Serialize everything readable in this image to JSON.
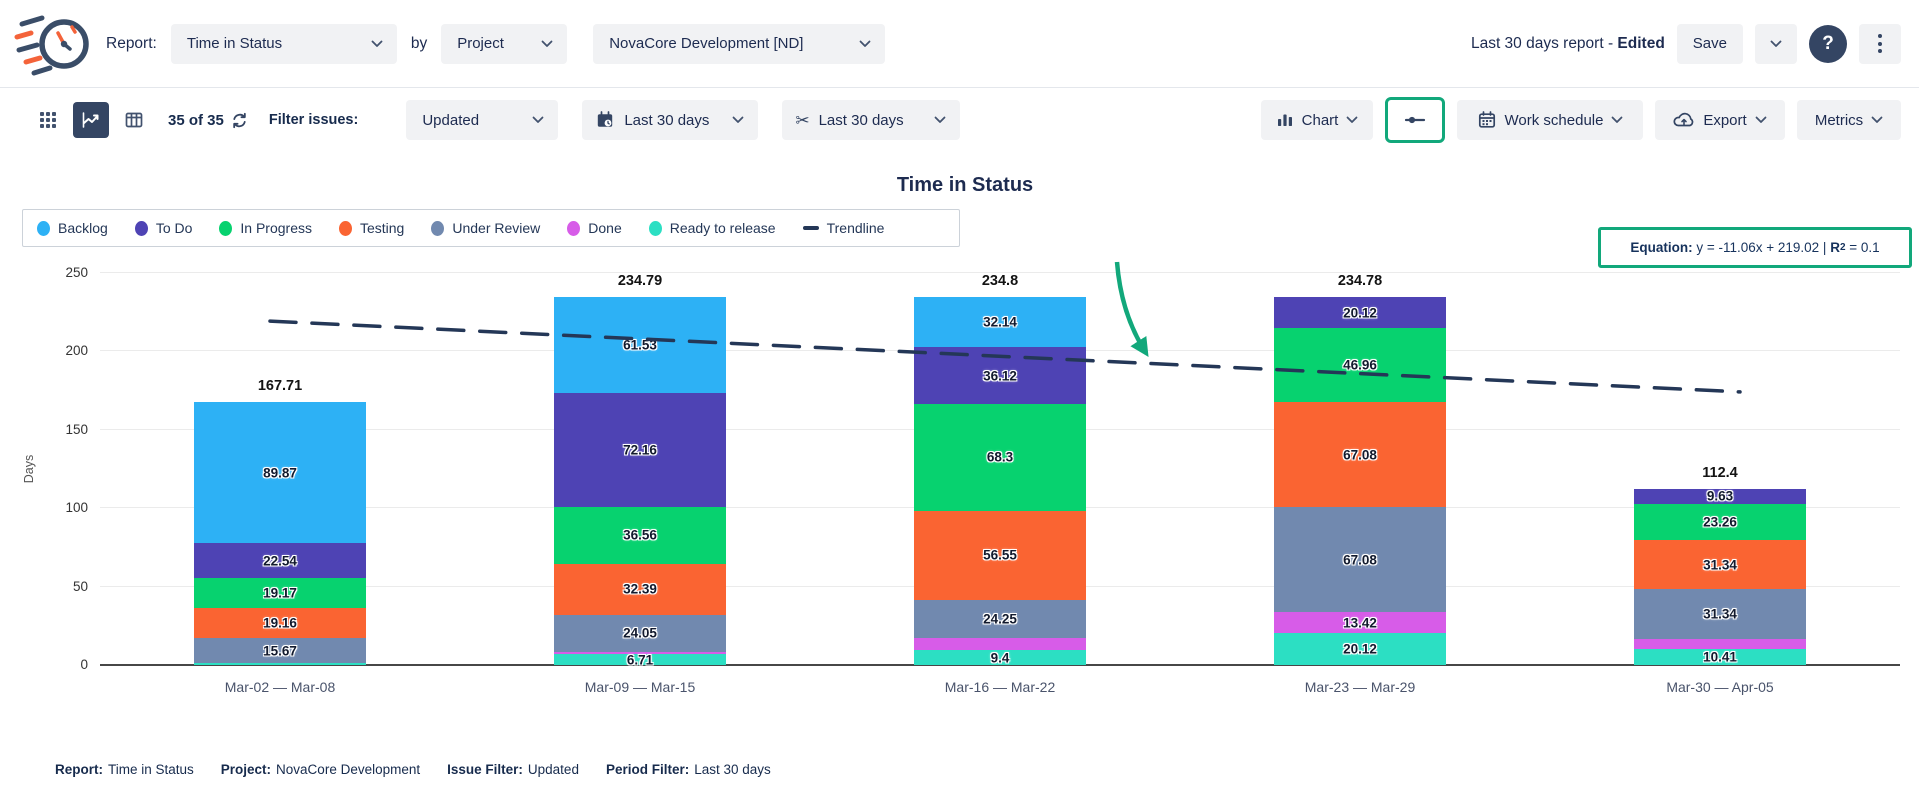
{
  "header": {
    "report_label": "Report:",
    "report_select": "Time in Status",
    "by_label": "by",
    "group_select": "Project",
    "project_select": "NovaCore Development [ND]",
    "report_status": "Last 30 days report - ",
    "report_status_edited": "Edited",
    "save_label": "Save",
    "help_glyph": "?"
  },
  "toolbar": {
    "issue_count": "35 of 35",
    "filter_label": "Filter issues:",
    "issue_filter": "Updated",
    "calendar_filter": "Last 30 days",
    "sprint_filter": "Last 30 days",
    "chart_button": "Chart",
    "work_schedule_button": "Work schedule",
    "export_button": "Export",
    "metrics_button": "Metrics",
    "scissors_glyph": "✂"
  },
  "annotations": {
    "color": "#12a87b"
  },
  "chart_data": {
    "type": "stacked-bar",
    "title": "Time in Status",
    "ylabel": "Days",
    "ylim": [
      0,
      250
    ],
    "yticks": [
      0,
      50,
      100,
      150,
      200,
      250
    ],
    "grid": true,
    "legend_position": "top-left",
    "series": [
      {
        "name": "Backlog",
        "color": "#2db1f5"
      },
      {
        "name": "To Do",
        "color": "#4e43b4"
      },
      {
        "name": "In Progress",
        "color": "#07d26f"
      },
      {
        "name": "Testing",
        "color": "#fa6432"
      },
      {
        "name": "Under Review",
        "color": "#7189af"
      },
      {
        "name": "Done",
        "color": "#d75ce8"
      },
      {
        "name": "Ready to release",
        "color": "#2cdfc3"
      }
    ],
    "categories": [
      "Mar-02 — Mar-08",
      "Mar-09 — Mar-15",
      "Mar-16 — Mar-22",
      "Mar-23 — Mar-29",
      "Mar-30 — Apr-05"
    ],
    "bars": [
      {
        "category": "Mar-02 — Mar-08",
        "total": "167.71",
        "segments": [
          {
            "status": "Ready to release",
            "value": 1.3
          },
          {
            "status": "Under Review",
            "value": 15.67,
            "label": "15.67"
          },
          {
            "status": "Testing",
            "value": 19.16,
            "label": "19.16"
          },
          {
            "status": "In Progress",
            "value": 19.17,
            "label": "19.17"
          },
          {
            "status": "To Do",
            "value": 22.54,
            "label": "22.54"
          },
          {
            "status": "Backlog",
            "value": 89.87,
            "label": "89.87"
          }
        ]
      },
      {
        "category": "Mar-09 — Mar-15",
        "total": "234.79",
        "segments": [
          {
            "status": "Ready to release",
            "value": 6.71,
            "label": "6.71"
          },
          {
            "status": "Done",
            "value": 1.39
          },
          {
            "status": "Under Review",
            "value": 24.05,
            "label": "24.05"
          },
          {
            "status": "Testing",
            "value": 32.39,
            "label": "32.39"
          },
          {
            "status": "In Progress",
            "value": 36.56,
            "label": "36.56"
          },
          {
            "status": "To Do",
            "value": 72.16,
            "label": "72.16"
          },
          {
            "status": "Backlog",
            "value": 61.53,
            "label": "61.53"
          }
        ]
      },
      {
        "category": "Mar-16 — Mar-22",
        "total": "234.8",
        "segments": [
          {
            "status": "Ready to release",
            "value": 9.4,
            "label": "9.4"
          },
          {
            "status": "Done",
            "value": 8.04
          },
          {
            "status": "Under Review",
            "value": 24.25,
            "label": "24.25"
          },
          {
            "status": "Testing",
            "value": 56.55,
            "label": "56.55"
          },
          {
            "status": "In Progress",
            "value": 68.3,
            "label": "68.3"
          },
          {
            "status": "To Do",
            "value": 36.12,
            "label": "36.12"
          },
          {
            "status": "Backlog",
            "value": 32.14,
            "label": "32.14"
          }
        ]
      },
      {
        "category": "Mar-23 — Mar-29",
        "total": "234.78",
        "segments": [
          {
            "status": "Ready to release",
            "value": 20.12,
            "label": "20.12"
          },
          {
            "status": "Done",
            "value": 13.42,
            "label": "13.42"
          },
          {
            "status": "Under Review",
            "value": 67.08,
            "label": "67.08"
          },
          {
            "status": "Testing",
            "value": 67.08,
            "label": "67.08"
          },
          {
            "status": "In Progress",
            "value": 46.96,
            "label": "46.96"
          },
          {
            "status": "To Do",
            "value": 20.12,
            "label": "20.12"
          }
        ]
      },
      {
        "category": "Mar-30 — Apr-05",
        "total": "112.4",
        "segments": [
          {
            "status": "Ready to release",
            "value": 10.41,
            "label": "10.41"
          },
          {
            "status": "Done",
            "value": 6.42
          },
          {
            "status": "Under Review",
            "value": 31.34,
            "label": "31.34"
          },
          {
            "status": "Testing",
            "value": 31.34,
            "label": "31.34"
          },
          {
            "status": "In Progress",
            "value": 23.26,
            "label": "23.26"
          },
          {
            "status": "To Do",
            "value": 9.63,
            "label": "9.63"
          }
        ]
      }
    ],
    "trendline": {
      "label": "Trendline",
      "color": "#243757",
      "start_value": 219.02,
      "end_value": 174.78
    },
    "equation": {
      "label": "Equation:",
      "body": " y = -11.06x + 219.02 | ",
      "r": "R",
      "r_exp": "2",
      "r_rest": " = 0.1"
    }
  },
  "footer": {
    "items": [
      {
        "label": "Report:",
        "value": "Time in Status"
      },
      {
        "label": "Project:",
        "value": "NovaCore Development"
      },
      {
        "label": "Issue Filter:",
        "value": "Updated"
      },
      {
        "label": "Period Filter:",
        "value": "Last 30 days"
      }
    ]
  }
}
